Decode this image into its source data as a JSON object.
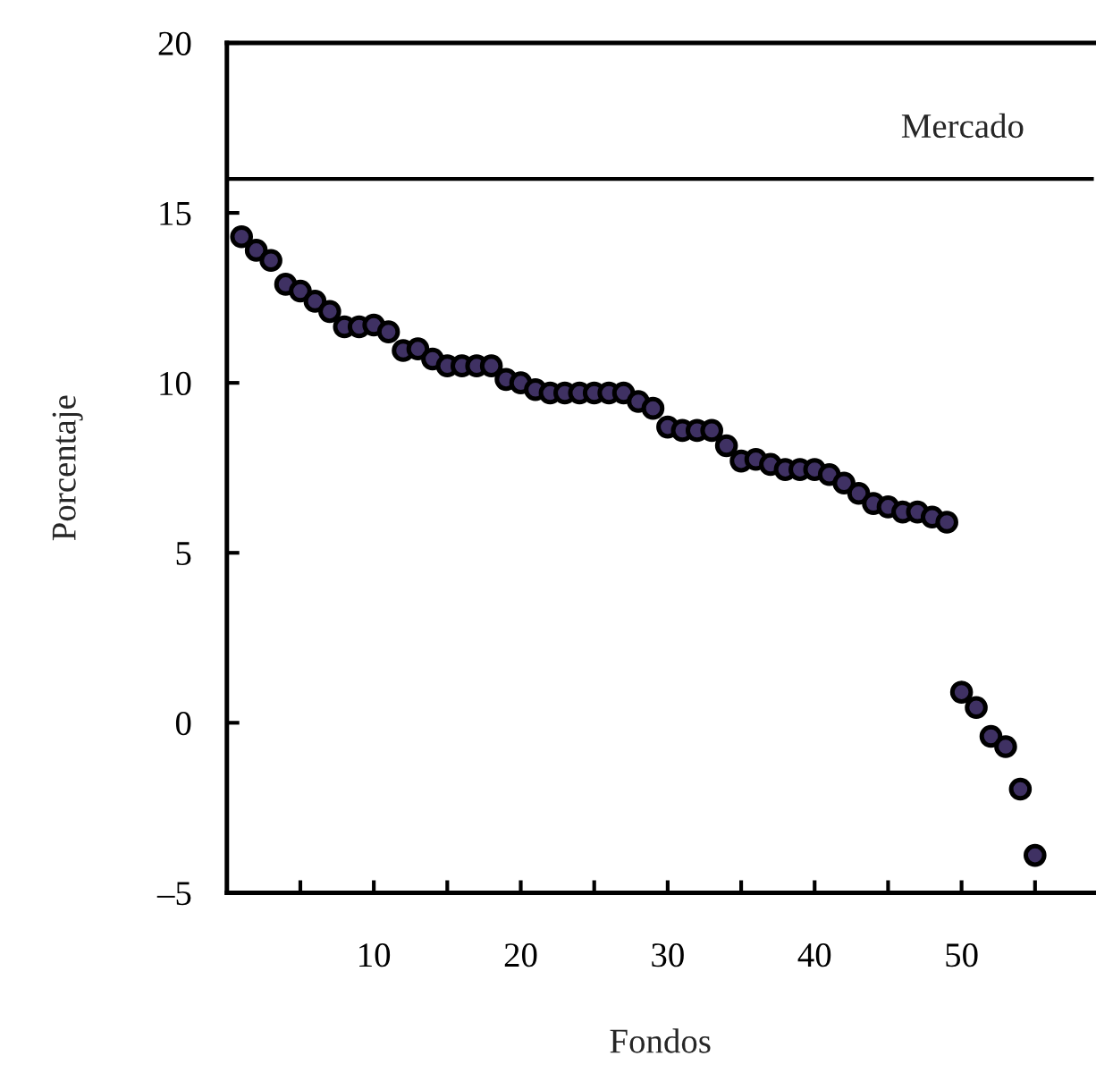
{
  "chart_data": {
    "type": "scatter",
    "xlabel": "Fondos",
    "ylabel": "Porcentaje",
    "x": [
      1,
      2,
      3,
      4,
      5,
      6,
      7,
      8,
      9,
      10,
      11,
      12,
      13,
      14,
      15,
      16,
      17,
      18,
      19,
      20,
      21,
      22,
      23,
      24,
      25,
      26,
      27,
      28,
      29,
      30,
      31,
      32,
      33,
      34,
      35,
      36,
      37,
      38,
      39,
      40,
      41,
      42,
      43,
      44,
      45,
      46,
      47,
      48,
      49,
      50,
      51,
      52,
      53,
      54,
      55
    ],
    "series": [
      {
        "color": "#3f3163",
        "values": [
          14.3,
          13.9,
          13.6,
          12.9,
          12.7,
          12.4,
          12.1,
          11.65,
          11.65,
          11.7,
          11.5,
          10.95,
          11.0,
          10.7,
          10.5,
          10.5,
          10.5,
          10.5,
          10.1,
          10.0,
          9.8,
          9.7,
          9.7,
          9.7,
          9.7,
          9.7,
          9.7,
          9.45,
          9.25,
          8.7,
          8.6,
          8.6,
          8.6,
          8.15,
          7.7,
          7.75,
          7.6,
          7.45,
          7.45,
          7.45,
          7.3,
          7.05,
          6.75,
          6.45,
          6.35,
          6.2,
          6.2,
          6.05,
          5.9,
          0.9,
          0.45,
          -0.4,
          -0.7,
          -1.95,
          -3.9
        ]
      }
    ],
    "xlim": [
      0,
      59
    ],
    "xticks": [
      {
        "value": 5,
        "label": null
      },
      10,
      {
        "value": 15,
        "label": null
      },
      20,
      {
        "value": 25,
        "label": null
      },
      30,
      {
        "value": 35,
        "label": null
      },
      40,
      {
        "value": 45,
        "label": null
      },
      50,
      {
        "value": 55,
        "label": null
      }
    ],
    "ylim": [
      -5,
      20
    ],
    "yticks": [
      {
        "value": -5,
        "label": "–5"
      },
      0,
      5,
      10,
      15,
      20
    ],
    "ref_lines": [
      {
        "axis": "y",
        "value": 16,
        "label": "Mercado",
        "color": "#000000"
      }
    ],
    "marker": "circle",
    "grid": false,
    "legend": false
  }
}
